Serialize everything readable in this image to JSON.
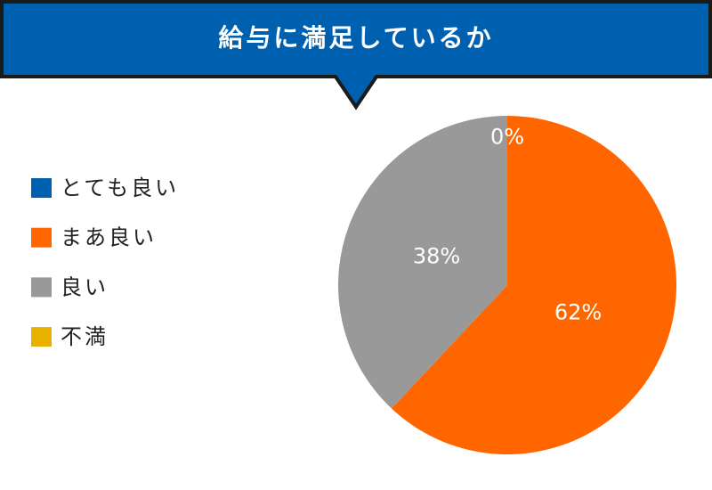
{
  "chart_data": {
    "type": "pie",
    "title": "給与に満足しているか",
    "categories": [
      "とても良い",
      "まあ良い",
      "良い",
      "不満"
    ],
    "values": [
      0,
      62,
      38,
      0
    ],
    "value_labels": [
      "0%",
      "62%",
      "38%",
      null
    ],
    "colors": [
      "#0060b0",
      "#ff6600",
      "#999999",
      "#e8b000"
    ],
    "legend": "left"
  }
}
